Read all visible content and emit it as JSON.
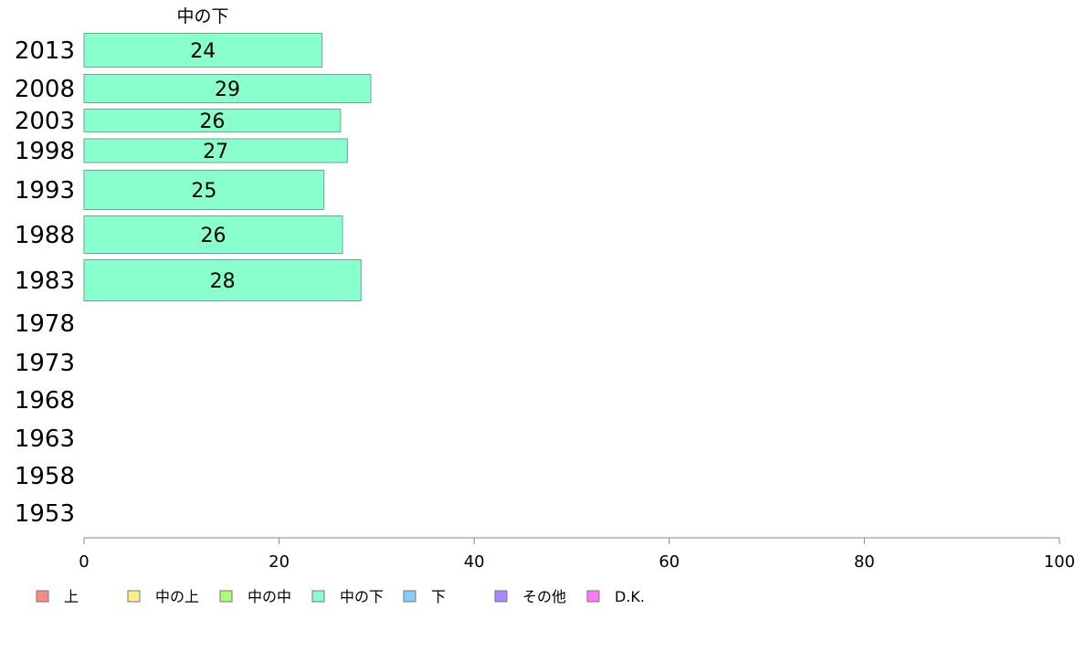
{
  "chart_data": {
    "type": "bar",
    "orientation": "horizontal",
    "stacked": true,
    "series_title": "中の下",
    "categories": [
      "2013",
      "2008",
      "2003",
      "1998",
      "1993",
      "1988",
      "1983",
      "1978",
      "1973",
      "1968",
      "1963",
      "1958",
      "1953"
    ],
    "series": [
      {
        "name": "中の下",
        "color": "#88ffcc",
        "values": [
          24.4,
          29.4,
          26.3,
          27.0,
          24.6,
          26.5,
          28.4,
          null,
          null,
          null,
          null,
          null,
          null
        ],
        "labels": [
          "24",
          "29",
          "26",
          "27",
          "25",
          "26",
          "28",
          "",
          "",
          "",
          "",
          "",
          ""
        ]
      }
    ],
    "xlim": [
      0,
      100
    ],
    "xticks": [
      0,
      20,
      40,
      60,
      80,
      100
    ],
    "grid": false,
    "legend_position": "bottom",
    "legend": [
      {
        "label": "上",
        "color": "#ff8888"
      },
      {
        "label": "中の上",
        "color": "#ffee88"
      },
      {
        "label": "中の中",
        "color": "#aaff77"
      },
      {
        "label": "中の下",
        "color": "#88ffcc"
      },
      {
        "label": "下",
        "color": "#88ccff"
      },
      {
        "label": "その他",
        "color": "#aa88ff"
      },
      {
        "label": "D.K.",
        "color": "#ff77ff"
      }
    ]
  }
}
